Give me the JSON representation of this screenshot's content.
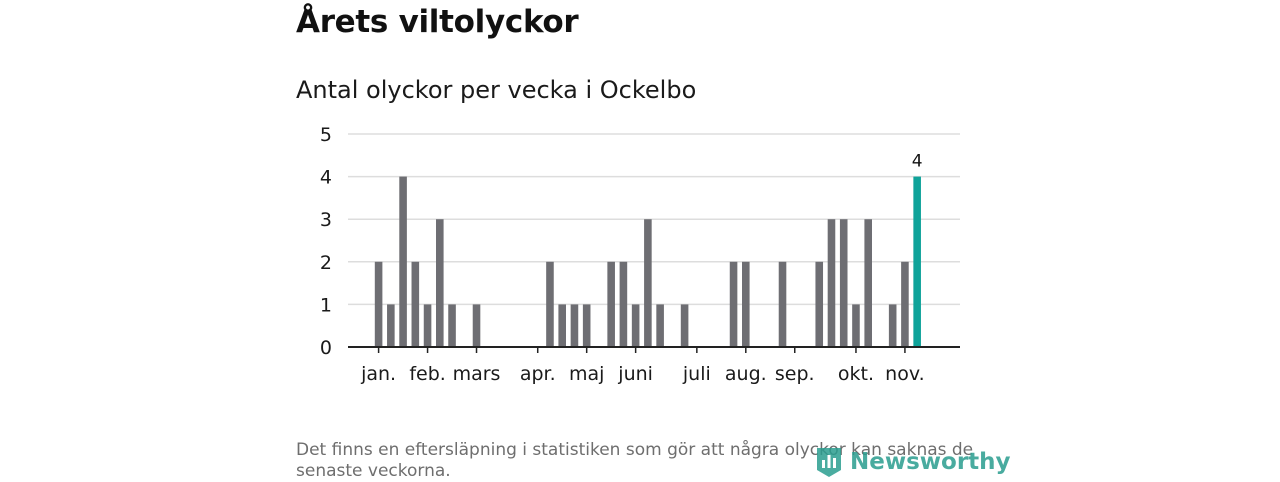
{
  "title": "Årets viltolyckor",
  "subtitle": "Antal olyckor per vecka i Ockelbo",
  "footnote": "Det finns en eftersläpning i statistiken som gör att några olyckor kan saknas de senaste veckorna.",
  "brand": {
    "name": "Newsworthy",
    "icon": "bar-chart-badge-icon"
  },
  "colors": {
    "bar": "#6e6e73",
    "highlight": "#0fa39a",
    "grid": "#dddddd",
    "axis": "#222222",
    "brand": "#2a9d8f"
  },
  "chart_data": {
    "type": "bar",
    "title": "Antal olyckor per vecka i Ockelbo",
    "xlabel": "",
    "ylabel": "",
    "ylim": [
      0,
      5
    ],
    "yticks": [
      0,
      1,
      2,
      3,
      4,
      5
    ],
    "grid": true,
    "x_domain": [
      -1.5,
      48.5
    ],
    "weeks": [
      1,
      2,
      3,
      4,
      5,
      6,
      7,
      8,
      9,
      10,
      11,
      12,
      13,
      14,
      15,
      16,
      17,
      18,
      19,
      20,
      21,
      22,
      23,
      24,
      25,
      26,
      27,
      28,
      29,
      30,
      31,
      32,
      33,
      34,
      35,
      36,
      37,
      38,
      39,
      40,
      41,
      42,
      43,
      44,
      45,
      46
    ],
    "values": [
      2,
      1,
      4,
      2,
      1,
      3,
      1,
      0,
      1,
      0,
      0,
      0,
      0,
      0,
      2,
      1,
      1,
      1,
      0,
      2,
      2,
      1,
      3,
      1,
      0,
      1,
      0,
      0,
      0,
      2,
      2,
      0,
      0,
      2,
      0,
      0,
      2,
      3,
      3,
      1,
      3,
      0,
      1,
      2,
      4,
      0
    ],
    "highlight_week": 45,
    "highlight_label": "4",
    "month_ticks": [
      {
        "label": "jan.",
        "week": 1
      },
      {
        "label": "feb.",
        "week": 5
      },
      {
        "label": "mars",
        "week": 9
      },
      {
        "label": "apr.",
        "week": 14
      },
      {
        "label": "maj",
        "week": 18
      },
      {
        "label": "juni",
        "week": 22
      },
      {
        "label": "juli",
        "week": 27
      },
      {
        "label": "aug.",
        "week": 31
      },
      {
        "label": "sep.",
        "week": 35
      },
      {
        "label": "okt.",
        "week": 40
      },
      {
        "label": "nov.",
        "week": 44
      }
    ]
  }
}
